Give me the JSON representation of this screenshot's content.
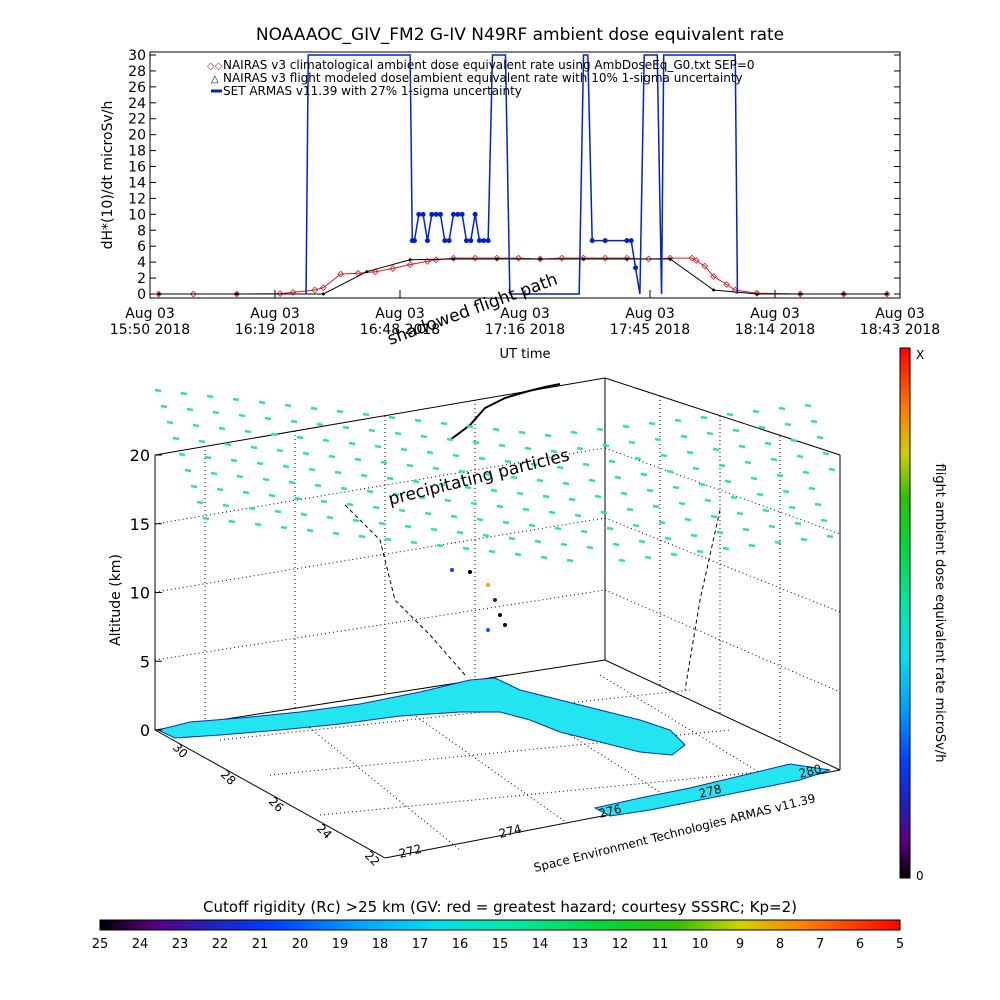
{
  "chart_data": [
    {
      "type": "line",
      "title": "NOAAAOC_GIV_FM2 G-IV    N49RF  ambient dose equivalent rate",
      "xlabel": "UT time",
      "ylabel": "dH*(10)/dt microSv/h",
      "ylim": [
        0,
        30
      ],
      "yticks": [
        0,
        2,
        4,
        6,
        8,
        10,
        12,
        14,
        16,
        18,
        20,
        22,
        24,
        26,
        28,
        30
      ],
      "xticks": [
        {
          "line1": "Aug 03",
          "line2": "15:50 2018"
        },
        {
          "line1": "Aug 03",
          "line2": "16:19 2018"
        },
        {
          "line1": "Aug 03",
          "line2": "16:48 2018"
        },
        {
          "line1": "Aug 03",
          "line2": "17:16 2018"
        },
        {
          "line1": "Aug 03",
          "line2": "17:45 2018"
        },
        {
          "line1": "Aug 03",
          "line2": "18:14 2018"
        },
        {
          "line1": "Aug 03",
          "line2": "18:43 2018"
        }
      ],
      "legend": [
        "NAIRAS v3 climatological ambient dose equivalent rate using AmbDoseEq_G0.txt SEP=0",
        "NAIRAS v3 flight modeled dose ambient equivalent rate with 10% 1-sigma uncertainty",
        "SET ARMAS v11.39 with 27% 1-sigma uncertainty"
      ],
      "series": [
        {
          "name": "NAIRAS v3 climatological ambient dose equivalent rate using AmbDoseEq_G0.txt SEP=0",
          "color": "#cc2222",
          "x_minutes": [
            2,
            10,
            20,
            30,
            33,
            38,
            40,
            44,
            48,
            52,
            56,
            60,
            64,
            66,
            70,
            75,
            80,
            85,
            90,
            95,
            100,
            105,
            110,
            115,
            120,
            125,
            126,
            128,
            130,
            133,
            135,
            140,
            150,
            160,
            170
          ],
          "values": [
            0,
            0,
            0,
            0.05,
            0.2,
            0.5,
            0.8,
            2.5,
            2.6,
            2.8,
            3.2,
            3.7,
            4.1,
            4.3,
            4.5,
            4.5,
            4.5,
            4.5,
            4.4,
            4.5,
            4.5,
            4.5,
            4.5,
            4.4,
            4.5,
            4.5,
            4.2,
            3.5,
            2.2,
            1.2,
            0.5,
            0.1,
            0,
            0,
            0
          ]
        },
        {
          "name": "NAIRAS v3 flight modeled dose ambient equivalent rate with 10% 1-sigma uncertainty",
          "color": "#000000",
          "x_minutes": [
            2,
            20,
            40,
            50,
            60,
            70,
            80,
            90,
            100,
            110,
            120,
            130,
            140,
            150,
            160,
            170
          ],
          "values": [
            0,
            0,
            0,
            2.8,
            4.3,
            4.4,
            4.4,
            4.4,
            4.4,
            4.4,
            4.4,
            0.5,
            0,
            0,
            0,
            0
          ]
        },
        {
          "name": "SET ARMAS v11.39 with 27% 1-sigma uncertainty",
          "color": "#0022cc",
          "x_minutes": [
            36,
            36.5,
            60,
            60.5,
            61,
            62,
            63,
            64,
            65,
            66,
            67,
            68,
            69,
            70,
            71,
            72,
            73,
            74,
            75,
            76,
            77,
            78,
            79,
            80,
            82,
            83,
            84,
            85,
            86,
            90,
            95,
            99,
            100,
            101,
            102,
            105,
            110,
            111,
            112,
            113,
            114,
            117,
            118,
            118.5,
            135,
            135.5
          ],
          "values": [
            0,
            30,
            30,
            6.7,
            6.7,
            10,
            10,
            6.7,
            10,
            10,
            10,
            6.7,
            6.7,
            10,
            10,
            10,
            6.7,
            6.7,
            10,
            6.7,
            6.7,
            6.7,
            30,
            30,
            30,
            0,
            0,
            0,
            0,
            0,
            0,
            0,
            30,
            30,
            6.7,
            6.7,
            6.7,
            6.7,
            3.3,
            0,
            30,
            30,
            0,
            30,
            30,
            0
          ]
        }
      ]
    },
    {
      "type": "scatter",
      "subtype": "3d-map",
      "zlabel": "Altitude (km)",
      "zticks": [
        0,
        5,
        10,
        15,
        20
      ],
      "lat_ticks": [
        30,
        28,
        26,
        24,
        22
      ],
      "lon_ticks": [
        272,
        274,
        276,
        278,
        280
      ],
      "annotations": [
        "shadowed flight path",
        "precipitating particles",
        "Space Environment Technologies ARMAS v11.39"
      ],
      "colorbar_right": {
        "label": "flight ambient dose equivalent rate microSv/h",
        "top_label": "X",
        "bottom_label": "0"
      },
      "colorbar_bottom": {
        "title": "Cutoff rigidity (Rc) >25 km (GV: red = greatest hazard; courtesy SSSRC; Kp=2)",
        "ticks": [
          25,
          24,
          23,
          22,
          21,
          20,
          19,
          18,
          17,
          16,
          15,
          14,
          13,
          12,
          11,
          10,
          9,
          8,
          7,
          6,
          5
        ]
      },
      "colors": {
        "land": "#22e5f0",
        "particles": "#22e8a0",
        "axis": "#000000"
      }
    }
  ]
}
